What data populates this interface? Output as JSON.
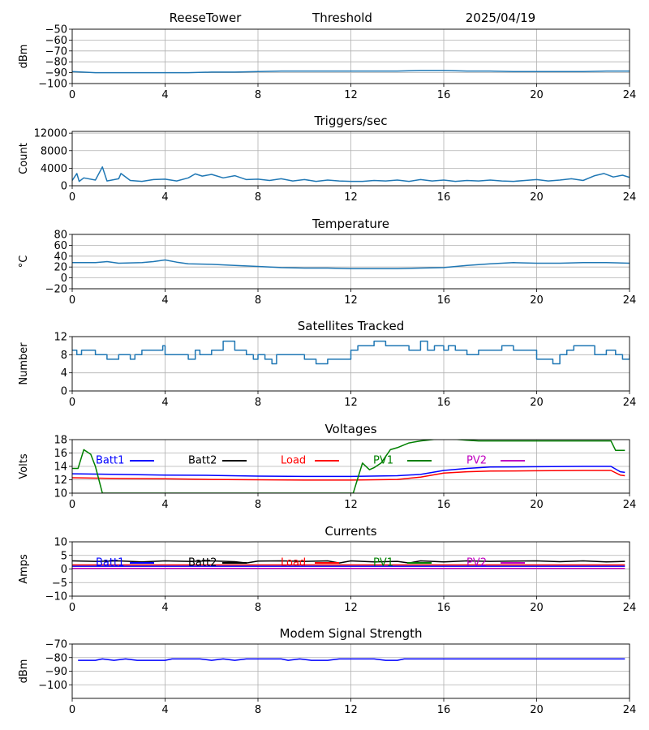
{
  "header": {
    "station": "ReeseTower",
    "mode": "Threshold",
    "date": "2025/04/19"
  },
  "chart_data": [
    {
      "id": "threshold",
      "type": "line",
      "title": "",
      "ylabel": "dBm",
      "xlim": [
        0,
        24
      ],
      "ylim": [
        -100,
        -50
      ],
      "xticks": [
        0,
        4,
        8,
        12,
        16,
        20,
        24
      ],
      "yticks": [
        -100,
        -90,
        -80,
        -70,
        -60,
        -50
      ],
      "grid": true,
      "series": [
        {
          "color": "#1f77b4",
          "x": [
            0,
            1,
            2,
            3,
            4,
            5,
            6,
            7,
            8,
            9,
            10,
            11,
            12,
            13,
            14,
            15,
            16,
            17,
            18,
            19,
            20,
            21,
            22,
            23,
            24
          ],
          "y": [
            -89,
            -90,
            -90,
            -90,
            -90,
            -90,
            -89.5,
            -89.5,
            -89,
            -88.5,
            -88.5,
            -88.5,
            -88.5,
            -88.5,
            -88.5,
            -88,
            -88,
            -88.5,
            -88.5,
            -89,
            -89,
            -89,
            -89,
            -88.5,
            -88.5
          ]
        }
      ]
    },
    {
      "id": "triggers",
      "type": "line",
      "title": "Triggers/sec",
      "ylabel": "Count",
      "xlim": [
        0,
        24
      ],
      "ylim": [
        0,
        12400
      ],
      "xticks": [
        0,
        4,
        8,
        12,
        16,
        20,
        24
      ],
      "yticks": [
        0,
        4000,
        8000,
        12000
      ],
      "grid": true,
      "series": [
        {
          "color": "#1f77b4",
          "x": [
            0,
            0.2,
            0.3,
            0.5,
            1,
            1.3,
            1.5,
            2,
            2.1,
            2.5,
            3,
            3.5,
            4,
            4.5,
            5,
            5.3,
            5.6,
            6,
            6.5,
            7,
            7.5,
            8,
            8.5,
            9,
            9.5,
            10,
            10.5,
            11,
            11.5,
            12,
            12.5,
            13,
            13.5,
            14,
            14.5,
            15,
            15.5,
            16,
            16.5,
            17,
            17.5,
            18,
            18.5,
            19,
            19.5,
            20,
            20.5,
            21,
            21.5,
            22,
            22.5,
            22.9,
            23.3,
            23.7,
            24
          ],
          "y": [
            1200,
            2800,
            1000,
            1800,
            1300,
            4300,
            1100,
            1600,
            2800,
            1200,
            1000,
            1400,
            1500,
            1100,
            1800,
            2700,
            2200,
            2600,
            1800,
            2300,
            1400,
            1500,
            1200,
            1600,
            1100,
            1400,
            1000,
            1300,
            1100,
            1000,
            1000,
            1200,
            1100,
            1300,
            1000,
            1400,
            1100,
            1300,
            1000,
            1200,
            1100,
            1300,
            1100,
            1000,
            1200,
            1400,
            1100,
            1300,
            1600,
            1200,
            2300,
            2800,
            2000,
            2400,
            1900
          ]
        }
      ]
    },
    {
      "id": "temperature",
      "type": "line",
      "title": "Temperature",
      "ylabel": "°C",
      "xlim": [
        0,
        24
      ],
      "ylim": [
        -20,
        80
      ],
      "xticks": [
        0,
        4,
        8,
        12,
        16,
        20,
        24
      ],
      "yticks": [
        -20,
        0,
        20,
        40,
        60,
        80
      ],
      "grid": true,
      "series": [
        {
          "color": "#1f77b4",
          "x": [
            0,
            1,
            1.5,
            2,
            3,
            3.5,
            4,
            4.5,
            5,
            6,
            7,
            8,
            9,
            10,
            11,
            12,
            13,
            14,
            15,
            16,
            17,
            18,
            19,
            20,
            21,
            22,
            23,
            24
          ],
          "y": [
            28,
            28,
            30,
            27,
            28,
            30,
            33,
            29,
            26,
            25,
            23,
            21,
            19,
            18,
            18,
            17,
            17,
            17,
            18,
            19,
            23,
            26,
            28,
            27,
            27,
            28,
            28,
            27
          ]
        }
      ]
    },
    {
      "id": "satellites",
      "type": "line",
      "title": "Satellites Tracked",
      "ylabel": "Number",
      "xlim": [
        0,
        24
      ],
      "ylim": [
        0,
        12
      ],
      "xticks": [
        0,
        4,
        8,
        12,
        16,
        20,
        24
      ],
      "yticks": [
        0,
        4,
        8,
        12
      ],
      "grid": true,
      "series": [
        {
          "color": "#1f77b4",
          "step": true,
          "x": [
            0,
            0.2,
            0.4,
            0.7,
            1,
            1.5,
            2,
            2.5,
            2.7,
            3,
            3.5,
            3.9,
            4,
            4.5,
            5,
            5.3,
            5.5,
            6,
            6.5,
            7,
            7.5,
            7.8,
            8,
            8.3,
            8.6,
            8.8,
            9.5,
            10,
            10.5,
            11,
            11.5,
            12,
            12.3,
            12.8,
            13,
            13.5,
            14,
            14.5,
            15,
            15.3,
            15.6,
            16,
            16.2,
            16.5,
            17,
            17.5,
            18,
            18.5,
            19,
            19.5,
            20,
            20.5,
            20.7,
            21,
            21.3,
            21.6,
            22,
            22.5,
            23,
            23.4,
            23.7,
            24
          ],
          "y": [
            9,
            8,
            9,
            9,
            8,
            7,
            8,
            7,
            8,
            9,
            9,
            10,
            8,
            8,
            7,
            9,
            8,
            9,
            11,
            9,
            8,
            7,
            8,
            7,
            6,
            8,
            8,
            7,
            6,
            7,
            7,
            9,
            10,
            10,
            11,
            10,
            10,
            9,
            11,
            9,
            10,
            9,
            10,
            9,
            8,
            9,
            9,
            10,
            9,
            9,
            7,
            7,
            6,
            8,
            9,
            10,
            10,
            8,
            9,
            8,
            7,
            8
          ]
        }
      ]
    },
    {
      "id": "voltages",
      "type": "line",
      "title": "Voltages",
      "ylabel": "Volts",
      "xlim": [
        0,
        24
      ],
      "ylim": [
        10,
        18
      ],
      "xticks": [
        0,
        4,
        8,
        12,
        16,
        20,
        24
      ],
      "yticks": [
        10,
        12,
        14,
        16,
        18
      ],
      "grid": true,
      "legend": "top, horizontal",
      "series": [
        {
          "name": "Batt1",
          "color": "#0000ff",
          "x": [
            0,
            2,
            4,
            6,
            8,
            10,
            12,
            14,
            15,
            16,
            17,
            18,
            20,
            22,
            23.2,
            23.6,
            23.8
          ],
          "y": [
            12.9,
            12.8,
            12.7,
            12.65,
            12.55,
            12.5,
            12.5,
            12.6,
            12.8,
            13.4,
            13.7,
            13.9,
            13.95,
            14,
            14,
            13.2,
            13.1
          ]
        },
        {
          "name": "Batt2",
          "color": "#000000",
          "x": [],
          "y": []
        },
        {
          "name": "Load",
          "color": "#ff0000",
          "x": [
            0,
            2,
            4,
            6,
            8,
            10,
            12,
            14,
            15,
            16,
            17,
            18,
            20,
            22,
            23.2,
            23.6,
            23.8
          ],
          "y": [
            12.3,
            12.2,
            12.15,
            12.05,
            12,
            11.95,
            11.95,
            12.05,
            12.4,
            13,
            13.2,
            13.3,
            13.35,
            13.4,
            13.4,
            12.7,
            12.6
          ]
        },
        {
          "name": "PV1",
          "color": "#008000",
          "x": [
            0,
            0.25,
            0.5,
            0.8,
            1,
            1.3,
            12.1,
            12.5,
            12.8,
            13,
            13.3,
            13.7,
            14,
            14.5,
            15,
            15.5,
            16,
            17,
            17.5,
            23.2,
            23.4,
            23.8
          ],
          "y": [
            13.7,
            13.7,
            16.5,
            15.8,
            14,
            10,
            10,
            14.5,
            13.5,
            13.8,
            14.5,
            16.5,
            16.8,
            17.5,
            17.8,
            18,
            18.2,
            17.9,
            17.8,
            17.8,
            16.4,
            16.4
          ]
        },
        {
          "name": "PV2",
          "color": "#bf00bf",
          "x": [],
          "y": []
        }
      ]
    },
    {
      "id": "currents",
      "type": "line",
      "title": "Currents",
      "ylabel": "Amps",
      "xlim": [
        0,
        24
      ],
      "ylim": [
        -10,
        10
      ],
      "xticks": [
        0,
        4,
        8,
        12,
        16,
        20,
        24
      ],
      "yticks": [
        -10,
        -5,
        0,
        5,
        10
      ],
      "grid": true,
      "legend": "top, horizontal",
      "series": [
        {
          "name": "Batt1",
          "color": "#0000ff",
          "x": [
            0,
            23.8
          ],
          "y": [
            1,
            1
          ]
        },
        {
          "name": "Batt2",
          "color": "#000000",
          "x": [
            0,
            1,
            2,
            3,
            4,
            5,
            6,
            7,
            7.5,
            8,
            9,
            10,
            11,
            11.5,
            12,
            13,
            14,
            14.5,
            15,
            16,
            17,
            18,
            19,
            20,
            21,
            22,
            23,
            23.8
          ],
          "y": [
            3,
            2.8,
            3,
            2.6,
            3,
            2.8,
            3,
            2.7,
            2.2,
            2.9,
            3,
            2.8,
            3,
            2.2,
            3,
            2.6,
            2.8,
            2.2,
            3,
            2.6,
            3,
            2.8,
            2.9,
            3,
            2.7,
            3,
            2.6,
            2.8
          ]
        },
        {
          "name": "Load",
          "color": "#ff0000",
          "x": [
            0,
            23.8
          ],
          "y": [
            1.5,
            1.5
          ]
        },
        {
          "name": "PV1",
          "color": "#008000",
          "x": [],
          "y": []
        },
        {
          "name": "PV2",
          "color": "#bf00bf",
          "x": [
            0,
            23.8
          ],
          "y": [
            0.2,
            0.2
          ]
        }
      ]
    },
    {
      "id": "modem",
      "type": "line",
      "title": "Modem Signal Strength",
      "ylabel": "dBm",
      "xlim": [
        0,
        24
      ],
      "ylim": [
        -110,
        -70
      ],
      "xticks": [
        0,
        4,
        8,
        12,
        16,
        20,
        24
      ],
      "yticks": [
        -100,
        -90,
        -80,
        -70
      ],
      "grid": true,
      "series": [
        {
          "color": "#0000ff",
          "x": [
            0.25,
            1,
            1.3,
            1.8,
            2.3,
            2.8,
            3.5,
            4,
            4.3,
            5,
            5.5,
            6,
            6.5,
            7,
            7.5,
            8,
            9,
            9.3,
            9.8,
            10.3,
            11,
            11.5,
            12,
            13,
            13.5,
            14,
            14.3,
            15,
            16,
            17,
            18,
            19,
            20,
            21,
            22,
            23,
            23.8
          ],
          "y": [
            -82,
            -82,
            -81,
            -82,
            -81,
            -82,
            -82,
            -82,
            -81,
            -81,
            -81,
            -82,
            -81,
            -82,
            -81,
            -81,
            -81,
            -82,
            -81,
            -82,
            -82,
            -81,
            -81,
            -81,
            -82,
            -82,
            -81,
            -81,
            -81,
            -81,
            -81,
            -81,
            -81,
            -81,
            -81,
            -81,
            -81
          ]
        }
      ]
    }
  ]
}
